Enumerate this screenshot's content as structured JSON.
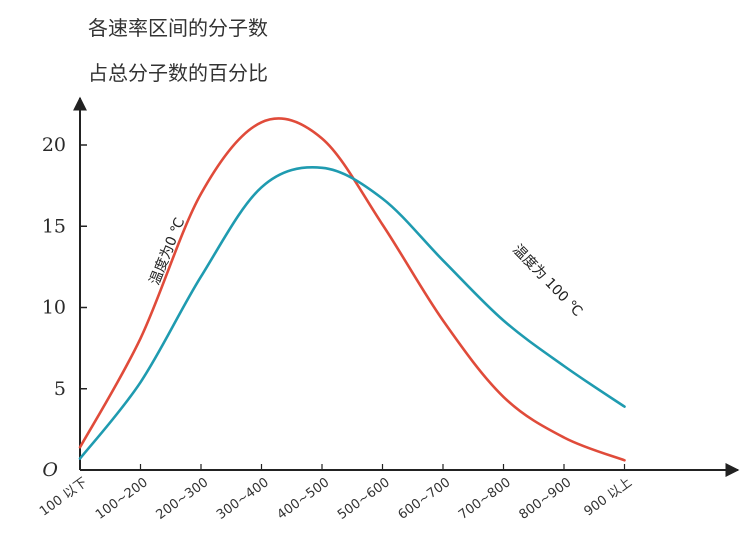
{
  "chart_data": {
    "type": "line",
    "ylabel_lines": [
      "各速率区间的分子数",
      "占总分子数的百分比"
    ],
    "origin_label": "O",
    "ylim": [
      0,
      24
    ],
    "yticks": [
      5,
      10,
      15,
      20
    ],
    "categories": [
      "100 以下",
      "100~200",
      "200~300",
      "300~400",
      "400~500",
      "500~600",
      "600~700",
      "700~800",
      "800~900",
      "900 以上"
    ],
    "x_unit_label": "",
    "grid": false,
    "legend": "none",
    "series": [
      {
        "name": "温度为0 ℃",
        "color": "#e04b3a",
        "values": [
          1.4,
          8.1,
          17.0,
          21.4,
          20.4,
          15.1,
          9.2,
          4.5,
          2.0,
          0.6
        ]
      },
      {
        "name": "温度为 100 ℃",
        "color": "#1f9bb0",
        "values": [
          0.7,
          5.4,
          11.9,
          17.4,
          18.6,
          16.7,
          12.9,
          9.2,
          6.4,
          3.9
        ]
      }
    ]
  }
}
